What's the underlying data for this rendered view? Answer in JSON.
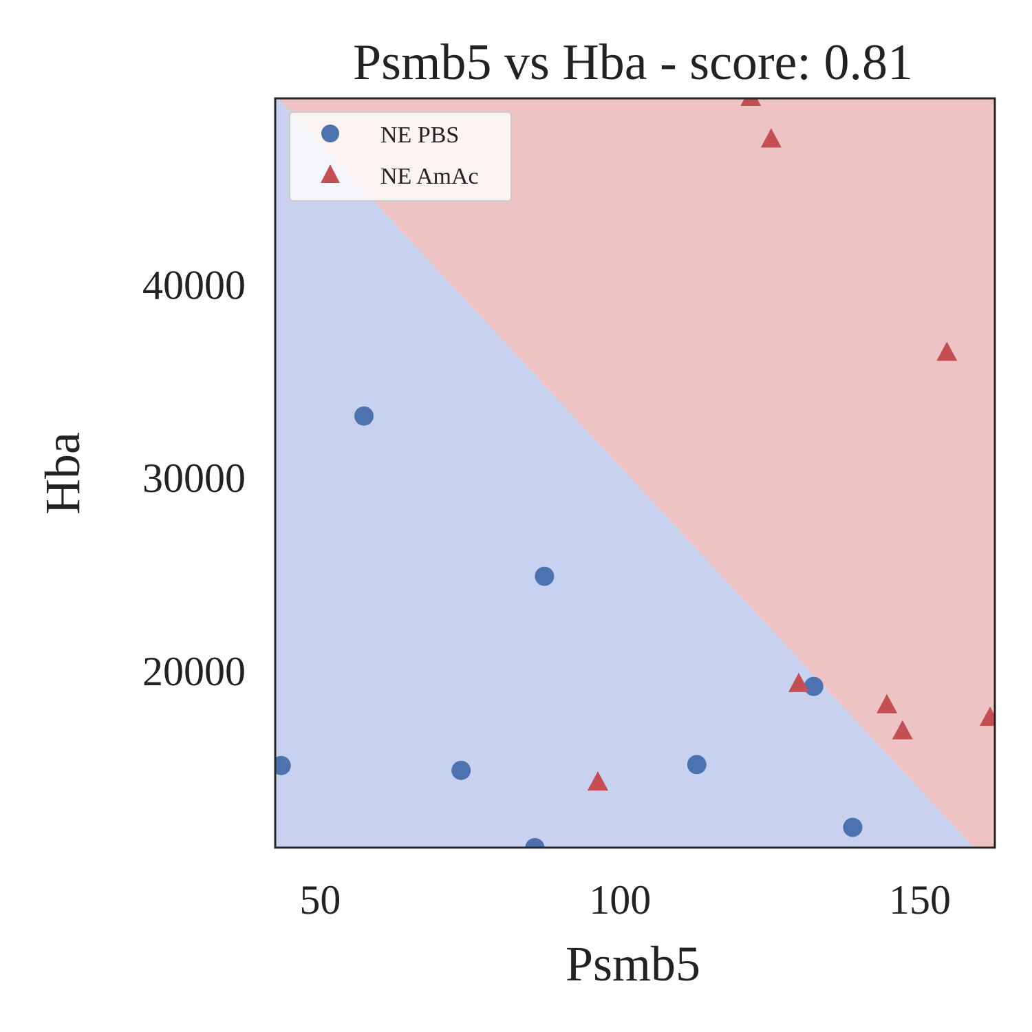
{
  "chart_data": {
    "type": "scatter",
    "title": "Psmb5 vs Hba - score: 0.81",
    "xlabel": "Psmb5",
    "ylabel": "Hba",
    "xlim": [
      42.5,
      162.5
    ],
    "ylim": [
      10800,
      49600
    ],
    "xticks": [
      50,
      100,
      150
    ],
    "yticks": [
      20000,
      30000,
      40000
    ],
    "xtick_labels": [
      "50",
      "100",
      "150"
    ],
    "ytick_labels": [
      "20000",
      "30000",
      "40000"
    ],
    "grid": false,
    "legend_position": "top-left",
    "decision_boundary": {
      "line": [
        [
          43.0,
          49600
        ],
        [
          159.0,
          10800
        ]
      ],
      "regions": [
        {
          "name": "NE PBS",
          "side": "below-left",
          "color": "#c9d1f1"
        },
        {
          "name": "NE AmAc",
          "side": "above-right",
          "color": "#edc4c3"
        }
      ]
    },
    "series": [
      {
        "name": "NE PBS",
        "marker": "circle",
        "color": "#4c72b0",
        "points": [
          [
            43.5,
            15050
          ],
          [
            57.3,
            33150
          ],
          [
            73.5,
            14800
          ],
          [
            87.4,
            24850
          ],
          [
            85.8,
            10800
          ],
          [
            112.8,
            15100
          ],
          [
            132.3,
            19150
          ],
          [
            138.8,
            11850
          ]
        ]
      },
      {
        "name": "NE AmAc",
        "marker": "triangle",
        "color": "#c44e52",
        "points": [
          [
            121.8,
            49600
          ],
          [
            125.2,
            47450
          ],
          [
            96.3,
            14150
          ],
          [
            129.8,
            19250
          ],
          [
            144.5,
            18150
          ],
          [
            147.1,
            16800
          ],
          [
            154.5,
            36400
          ],
          [
            161.7,
            17500
          ]
        ]
      }
    ]
  }
}
